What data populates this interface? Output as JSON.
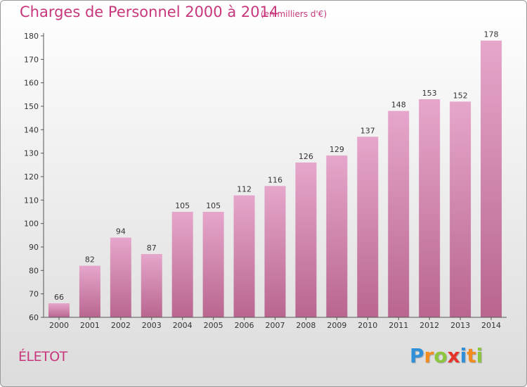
{
  "title": "Charges de Personnel 2000 à 2014",
  "subtitle": "(en milliers d'€)",
  "commune": "ÉLETOT",
  "logo": {
    "letters": [
      "P",
      "r",
      "o",
      "x",
      "i",
      "t",
      "i"
    ],
    "colors": [
      "#2f8fd8",
      "#f28c1f",
      "#8cc63f",
      "#e5332a",
      "#2f8fd8",
      "#f28c1f",
      "#8cc63f"
    ]
  },
  "colors": {
    "bar_top": "#e6a6cb",
    "bar_bottom": "#b9668f",
    "text_accent": "#c8377b"
  },
  "chart_data": {
    "type": "bar",
    "categories": [
      "2000",
      "2001",
      "2002",
      "2003",
      "2004",
      "2005",
      "2006",
      "2007",
      "2008",
      "2009",
      "2010",
      "2011",
      "2012",
      "2013",
      "2014"
    ],
    "values": [
      66,
      82,
      94,
      87,
      105,
      105,
      112,
      116,
      126,
      129,
      137,
      148,
      153,
      152,
      178
    ],
    "ylim": [
      60,
      180
    ],
    "yticks": [
      60,
      70,
      80,
      90,
      100,
      110,
      120,
      130,
      140,
      150,
      160,
      170,
      180
    ],
    "grid": false
  }
}
